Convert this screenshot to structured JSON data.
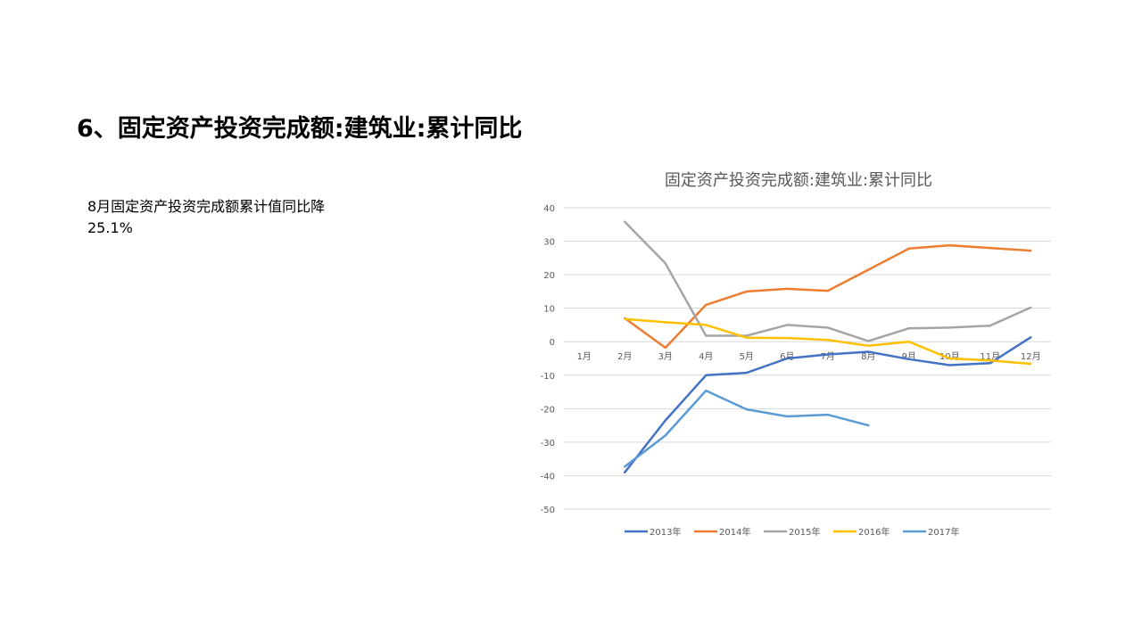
{
  "slide": {
    "title": "6、固定资产投资完成额:建筑业:累计同比",
    "note_line1": "8月固定资产投资完成额累计值同比降",
    "note_line2": "25.1%"
  },
  "chart_data": {
    "type": "line",
    "title": "固定资产投资完成额:建筑业:累计同比",
    "categories": [
      "1月",
      "2月",
      "3月",
      "4月",
      "5月",
      "6月",
      "7月",
      "8月",
      "9月",
      "10月",
      "11月",
      "12月"
    ],
    "ylim": [
      -50,
      40
    ],
    "yticks": [
      40,
      30,
      20,
      10,
      0,
      -10,
      -20,
      -30,
      -40,
      -50
    ],
    "grid": true,
    "legend_position": "bottom",
    "series": [
      {
        "name": "2013年",
        "color": "#4472C4",
        "values": [
          null,
          -39,
          -23.5,
          -10,
          -9.3,
          -5,
          -3.8,
          -3,
          -5.2,
          -7,
          -6.4,
          1.3
        ]
      },
      {
        "name": "2014年",
        "color": "#ED7D31",
        "values": [
          null,
          7,
          -1.8,
          11,
          15,
          15.8,
          15.2,
          21.5,
          27.8,
          28.8,
          28,
          27.2
        ]
      },
      {
        "name": "2015年",
        "color": "#A5A5A5",
        "values": [
          null,
          35.8,
          23.4,
          1.8,
          1.8,
          5,
          4.2,
          0.2,
          4,
          4.2,
          4.8,
          10.2
        ]
      },
      {
        "name": "2016年",
        "color": "#FFC000",
        "values": [
          null,
          6.8,
          5.8,
          5,
          1.2,
          1.1,
          0.5,
          -1.2,
          0,
          -5,
          -5.6,
          -6.6
        ]
      },
      {
        "name": "2017年",
        "color": "#5B9BD5",
        "values": [
          null,
          -37.3,
          -28,
          -14.6,
          -20.2,
          -22.3,
          -21.8,
          -25,
          null,
          null,
          null,
          null
        ]
      }
    ]
  }
}
